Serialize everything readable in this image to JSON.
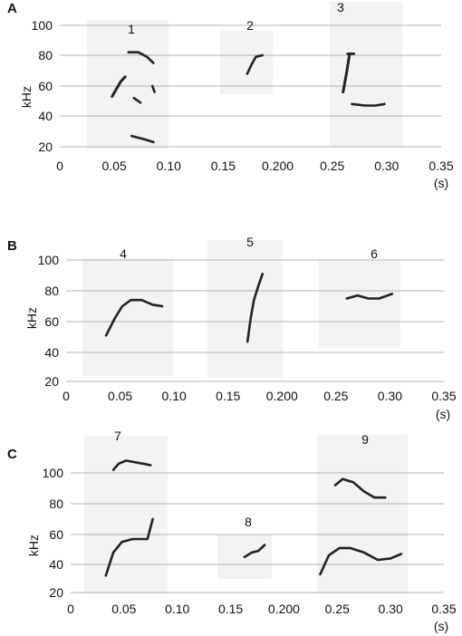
{
  "figure": {
    "panels": [
      {
        "label": "A",
        "ylabel": "kHz",
        "xunit": "(s)",
        "yticks": [
          "100",
          "80",
          "60",
          "40",
          "20"
        ],
        "xticks": [
          "0",
          "0.05",
          "0.10",
          "0.15",
          "0.200",
          "0.25",
          "0.30",
          "0.35"
        ],
        "calls": [
          "1",
          "2",
          "3"
        ]
      },
      {
        "label": "B",
        "ylabel": "kHz",
        "xunit": "(s)",
        "yticks": [
          "100",
          "80",
          "60",
          "40",
          "20"
        ],
        "xticks": [
          "0",
          "0.05",
          "0.10",
          "0.15",
          "0.200",
          "0.25",
          "0.30",
          "0.35"
        ],
        "calls": [
          "4",
          "5",
          "6"
        ]
      },
      {
        "label": "C",
        "ylabel": "kHz",
        "xunit": "(s)",
        "yticks": [
          "100",
          "80",
          "60",
          "40",
          "20"
        ],
        "xticks": [
          "0",
          "0.05",
          "0.10",
          "0.15",
          "0.200",
          "0.25",
          "0.30",
          "0.35"
        ],
        "calls": [
          "7",
          "8",
          "9"
        ]
      }
    ]
  },
  "chart_data": [
    {
      "type": "spectrogram",
      "panel": "A",
      "xlim": [
        0,
        0.35
      ],
      "ylim": [
        20,
        100
      ],
      "xlabel": "(s)",
      "ylabel": "kHz",
      "calls": [
        {
          "id": "1",
          "traces": [
            {
              "t": [
                0.048,
                0.052,
                0.056,
                0.06
              ],
              "f": [
                53,
                58,
                63,
                66
              ]
            },
            {
              "t": [
                0.063,
                0.072,
                0.08,
                0.086
              ],
              "f": [
                82,
                82,
                79,
                75
              ]
            },
            {
              "t": [
                0.068,
                0.074
              ],
              "f": [
                52,
                49
              ]
            },
            {
              "t": [
                0.085,
                0.087
              ],
              "f": [
                60,
                56
              ]
            },
            {
              "t": [
                0.066,
                0.077,
                0.086
              ],
              "f": [
                27,
                25,
                23
              ]
            }
          ]
        },
        {
          "id": "2",
          "traces": [
            {
              "t": [
                0.172,
                0.176,
                0.18,
                0.186
              ],
              "f": [
                68,
                74,
                79,
                80
              ]
            }
          ]
        },
        {
          "id": "3",
          "traces": [
            {
              "t": [
                0.26,
                0.263,
                0.266
              ],
              "f": [
                56,
                68,
                81
              ]
            },
            {
              "t": [
                0.264,
                0.27
              ],
              "f": [
                81,
                81
              ]
            },
            {
              "t": [
                0.268,
                0.28,
                0.29,
                0.298
              ],
              "f": [
                48,
                47,
                47,
                48
              ]
            }
          ]
        }
      ]
    },
    {
      "type": "spectrogram",
      "panel": "B",
      "xlim": [
        0,
        0.35
      ],
      "ylim": [
        20,
        100
      ],
      "xlabel": "(s)",
      "ylabel": "kHz",
      "calls": [
        {
          "id": "4",
          "traces": [
            {
              "t": [
                0.037,
                0.045,
                0.052,
                0.06,
                0.07,
                0.08,
                0.089
              ],
              "f": [
                51,
                62,
                70,
                74,
                74,
                71,
                70
              ]
            }
          ]
        },
        {
          "id": "5",
          "traces": [
            {
              "t": [
                0.168,
                0.171,
                0.174,
                0.178,
                0.182
              ],
              "f": [
                47,
                62,
                74,
                83,
                91
              ]
            }
          ]
        },
        {
          "id": "6",
          "traces": [
            {
              "t": [
                0.26,
                0.27,
                0.28,
                0.29,
                0.302
              ],
              "f": [
                75,
                77,
                75,
                75,
                78
              ]
            }
          ]
        }
      ]
    },
    {
      "type": "spectrogram",
      "panel": "C",
      "xlim": [
        0,
        0.35
      ],
      "ylim": [
        20,
        100
      ],
      "xlabel": "(s)",
      "ylabel": "kHz",
      "calls": [
        {
          "id": "7",
          "traces": [
            {
              "t": [
                0.04,
                0.045,
                0.052,
                0.06,
                0.068,
                0.075
              ],
              "f": [
                102,
                106,
                108,
                107,
                106,
                105
              ]
            },
            {
              "t": [
                0.033,
                0.04,
                0.048,
                0.058,
                0.065,
                0.072,
                0.077
              ],
              "f": [
                32,
                48,
                55,
                57,
                57,
                57,
                70
              ]
            }
          ]
        },
        {
          "id": "8",
          "traces": [
            {
              "t": [
                0.163,
                0.17,
                0.176,
                0.182
              ],
              "f": [
                45,
                48,
                49,
                53
              ]
            }
          ]
        },
        {
          "id": "9",
          "traces": [
            {
              "t": [
                0.248,
                0.255,
                0.265,
                0.275,
                0.285,
                0.295
              ],
              "f": [
                92,
                96,
                94,
                88,
                84,
                84
              ]
            },
            {
              "t": [
                0.234,
                0.242,
                0.252,
                0.262,
                0.275,
                0.288,
                0.3,
                0.31
              ],
              "f": [
                33,
                46,
                51,
                51,
                48,
                43,
                44,
                47
              ]
            }
          ]
        }
      ]
    }
  ]
}
